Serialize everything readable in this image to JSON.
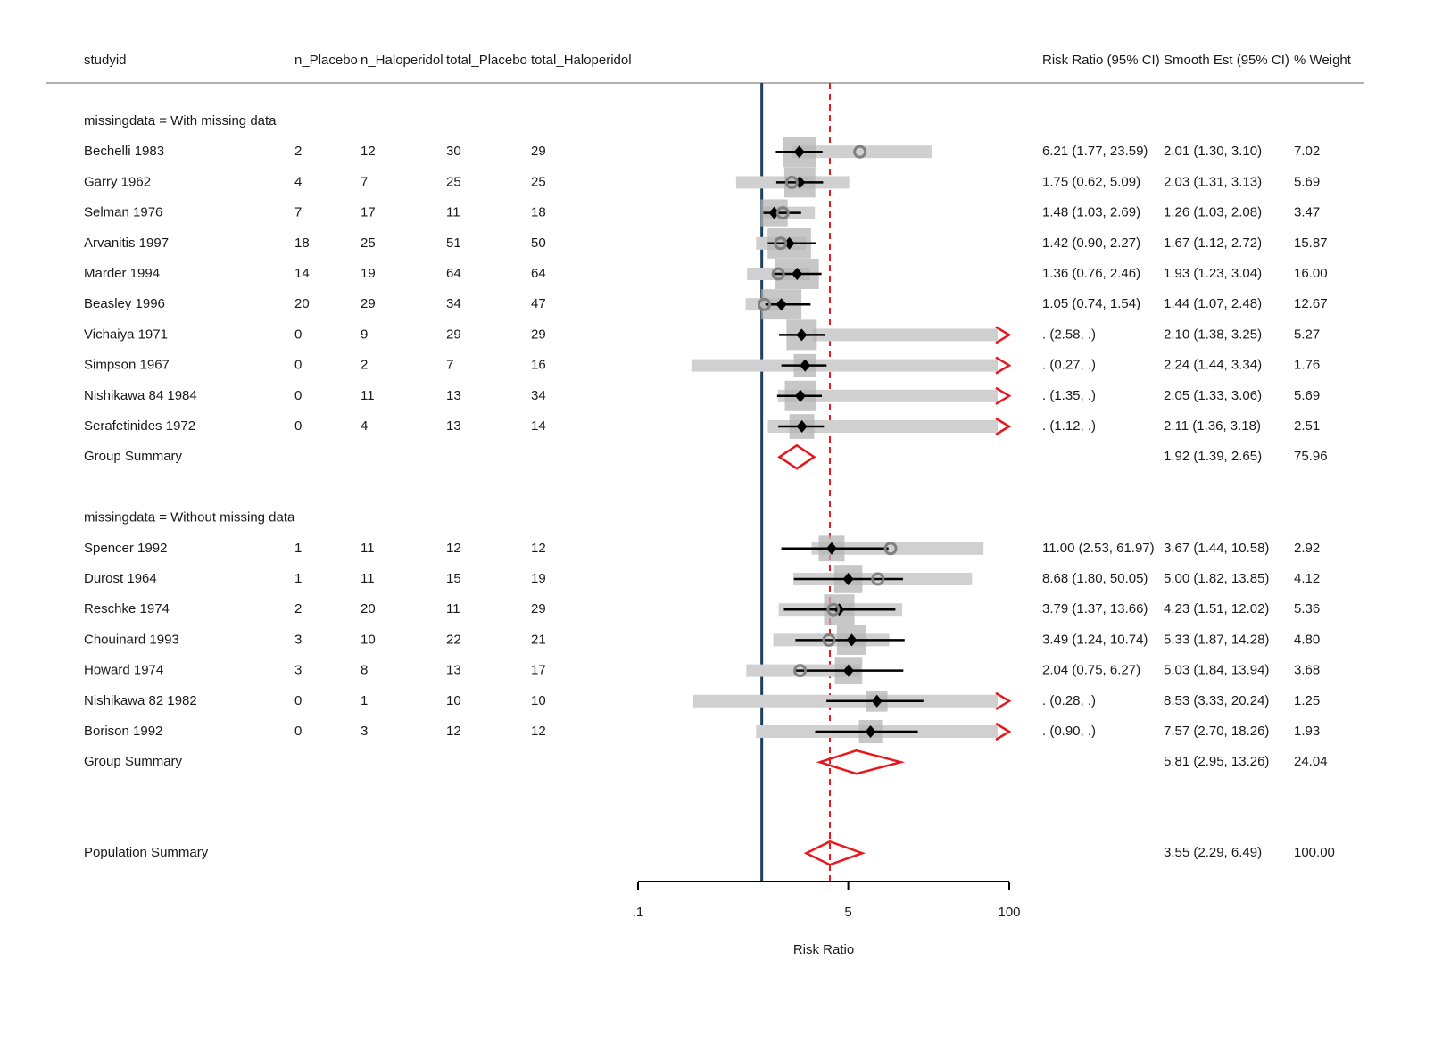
{
  "chart_data": {
    "type": "forest",
    "xlabel": "Risk Ratio",
    "x_scale": "log",
    "xlim": [
      0.1,
      100
    ],
    "x_ticks": [
      {
        "value": 0.1,
        "label": ".1"
      },
      {
        "value": 5,
        "label": "5"
      },
      {
        "value": 100,
        "label": "100"
      }
    ],
    "null_line": 1,
    "summary_line": 3.55,
    "headers": {
      "studyid": "studyid",
      "n_placebo": "n_Placebo",
      "n_haloperidol": "n_Haloperidol",
      "total_placebo": "total_Placebo",
      "total_haloperidol": "total_Haloperidol",
      "rr": "Risk Ratio (95% CI)",
      "smooth": "Smooth Est (95% CI)",
      "weight": "% Weight"
    },
    "groups": [
      {
        "label": "missingdata = With missing data",
        "studies": [
          {
            "studyid": "Bechelli 1983",
            "n_placebo": "2",
            "n_haloperidol": "12",
            "total_placebo": "30",
            "total_haloperidol": "29",
            "rr_text": "6.21 (1.77, 23.59)",
            "smooth_text": "2.01 (1.30, 3.10)",
            "weight_text": "7.02",
            "rr": 6.21,
            "rr_lo": 1.77,
            "rr_hi": 23.59,
            "smooth": 2.01,
            "smooth_lo": 1.3,
            "smooth_hi": 3.1,
            "weight": 7.02
          },
          {
            "studyid": "Garry 1962",
            "n_placebo": "4",
            "n_haloperidol": "7",
            "total_placebo": "25",
            "total_haloperidol": "25",
            "rr_text": "1.75 (0.62, 5.09)",
            "smooth_text": "2.03 (1.31, 3.13)",
            "weight_text": "5.69",
            "rr": 1.75,
            "rr_lo": 0.62,
            "rr_hi": 5.09,
            "smooth": 2.03,
            "smooth_lo": 1.31,
            "smooth_hi": 3.13,
            "weight": 5.69
          },
          {
            "studyid": "Selman 1976",
            "n_placebo": "7",
            "n_haloperidol": "17",
            "total_placebo": "11",
            "total_haloperidol": "18",
            "rr_text": "1.48 (1.03, 2.69)",
            "smooth_text": "1.26 (1.03, 2.08)",
            "weight_text": "3.47",
            "rr": 1.48,
            "rr_lo": 1.03,
            "rr_hi": 2.69,
            "smooth": 1.26,
            "smooth_lo": 1.03,
            "smooth_hi": 2.08,
            "weight": 3.47
          },
          {
            "studyid": "Arvanitis 1997",
            "n_placebo": "18",
            "n_haloperidol": "25",
            "total_placebo": "51",
            "total_haloperidol": "50",
            "rr_text": "1.42 (0.90, 2.27)",
            "smooth_text": "1.67 (1.12, 2.72)",
            "weight_text": "15.87",
            "rr": 1.42,
            "rr_lo": 0.9,
            "rr_hi": 2.27,
            "smooth": 1.67,
            "smooth_lo": 1.12,
            "smooth_hi": 2.72,
            "weight": 15.87
          },
          {
            "studyid": "Marder 1994",
            "n_placebo": "14",
            "n_haloperidol": "19",
            "total_placebo": "64",
            "total_haloperidol": "64",
            "rr_text": "1.36 (0.76, 2.46)",
            "smooth_text": "1.93 (1.23, 3.04)",
            "weight_text": "16.00",
            "rr": 1.36,
            "rr_lo": 0.76,
            "rr_hi": 2.46,
            "smooth": 1.93,
            "smooth_lo": 1.23,
            "smooth_hi": 3.04,
            "weight": 16.0
          },
          {
            "studyid": "Beasley 1996",
            "n_placebo": "20",
            "n_haloperidol": "29",
            "total_placebo": "34",
            "total_haloperidol": "47",
            "rr_text": "1.05 (0.74, 1.54)",
            "smooth_text": "1.44 (1.07, 2.48)",
            "weight_text": "12.67",
            "rr": 1.05,
            "rr_lo": 0.74,
            "rr_hi": 1.54,
            "smooth": 1.44,
            "smooth_lo": 1.07,
            "smooth_hi": 2.48,
            "weight": 12.67
          },
          {
            "studyid": "Vichaiya 1971",
            "n_placebo": "0",
            "n_haloperidol": "9",
            "total_placebo": "29",
            "total_haloperidol": "29",
            "rr_text": ". (2.58, .)",
            "smooth_text": "2.10 (1.38, 3.25)",
            "weight_text": "5.27",
            "rr": null,
            "rr_lo": 2.58,
            "rr_hi": null,
            "smooth": 2.1,
            "smooth_lo": 1.38,
            "smooth_hi": 3.25,
            "weight": 5.27
          },
          {
            "studyid": "Simpson 1967",
            "n_placebo": "0",
            "n_haloperidol": "2",
            "total_placebo": "7",
            "total_haloperidol": "16",
            "rr_text": ". (0.27, .)",
            "smooth_text": "2.24 (1.44, 3.34)",
            "weight_text": "1.76",
            "rr": null,
            "rr_lo": 0.27,
            "rr_hi": null,
            "smooth": 2.24,
            "smooth_lo": 1.44,
            "smooth_hi": 3.34,
            "weight": 1.76
          },
          {
            "studyid": "Nishikawa 84 1984",
            "n_placebo": "0",
            "n_haloperidol": "11",
            "total_placebo": "13",
            "total_haloperidol": "34",
            "rr_text": ". (1.35, .)",
            "smooth_text": "2.05 (1.33, 3.06)",
            "weight_text": "5.69",
            "rr": null,
            "rr_lo": 1.35,
            "rr_hi": null,
            "smooth": 2.05,
            "smooth_lo": 1.33,
            "smooth_hi": 3.06,
            "weight": 5.69
          },
          {
            "studyid": "Serafetinides 1972",
            "n_placebo": "0",
            "n_haloperidol": "4",
            "total_placebo": "13",
            "total_haloperidol": "14",
            "rr_text": ". (1.12, .)",
            "smooth_text": "2.11 (1.36, 3.18)",
            "weight_text": "2.51",
            "rr": null,
            "rr_lo": 1.12,
            "rr_hi": null,
            "smooth": 2.11,
            "smooth_lo": 1.36,
            "smooth_hi": 3.18,
            "weight": 2.51
          }
        ],
        "summary": {
          "label": "Group Summary",
          "smooth_text": "1.92 (1.39, 2.65)",
          "weight_text": "75.96",
          "est": 1.92,
          "lo": 1.39,
          "hi": 2.65
        }
      },
      {
        "label": "missingdata = Without missing data",
        "studies": [
          {
            "studyid": "Spencer 1992",
            "n_placebo": "1",
            "n_haloperidol": "11",
            "total_placebo": "12",
            "total_haloperidol": "12",
            "rr_text": "11.00 (2.53, 61.97)",
            "smooth_text": "3.67 (1.44, 10.58)",
            "weight_text": "2.92",
            "rr": 11.0,
            "rr_lo": 2.53,
            "rr_hi": 61.97,
            "smooth": 3.67,
            "smooth_lo": 1.44,
            "smooth_hi": 10.58,
            "weight": 2.92
          },
          {
            "studyid": "Durost 1964",
            "n_placebo": "1",
            "n_haloperidol": "11",
            "total_placebo": "15",
            "total_haloperidol": "19",
            "rr_text": "8.68 (1.80, 50.05)",
            "smooth_text": "5.00 (1.82, 13.85)",
            "weight_text": "4.12",
            "rr": 8.68,
            "rr_lo": 1.8,
            "rr_hi": 50.05,
            "smooth": 5.0,
            "smooth_lo": 1.82,
            "smooth_hi": 13.85,
            "weight": 4.12
          },
          {
            "studyid": "Reschke 1974",
            "n_placebo": "2",
            "n_haloperidol": "20",
            "total_placebo": "11",
            "total_haloperidol": "29",
            "rr_text": "3.79 (1.37, 13.66)",
            "smooth_text": "4.23 (1.51, 12.02)",
            "weight_text": "5.36",
            "rr": 3.79,
            "rr_lo": 1.37,
            "rr_hi": 13.66,
            "smooth": 4.23,
            "smooth_lo": 1.51,
            "smooth_hi": 12.02,
            "weight": 5.36
          },
          {
            "studyid": "Chouinard 1993",
            "n_placebo": "3",
            "n_haloperidol": "10",
            "total_placebo": "22",
            "total_haloperidol": "21",
            "rr_text": "3.49 (1.24, 10.74)",
            "smooth_text": "5.33 (1.87, 14.28)",
            "weight_text": "4.80",
            "rr": 3.49,
            "rr_lo": 1.24,
            "rr_hi": 10.74,
            "smooth": 5.33,
            "smooth_lo": 1.87,
            "smooth_hi": 14.28,
            "weight": 4.8
          },
          {
            "studyid": "Howard 1974",
            "n_placebo": "3",
            "n_haloperidol": "8",
            "total_placebo": "13",
            "total_haloperidol": "17",
            "rr_text": "2.04 (0.75, 6.27)",
            "smooth_text": "5.03 (1.84, 13.94)",
            "weight_text": "3.68",
            "rr": 2.04,
            "rr_lo": 0.75,
            "rr_hi": 6.27,
            "smooth": 5.03,
            "smooth_lo": 1.84,
            "smooth_hi": 13.94,
            "weight": 3.68
          },
          {
            "studyid": "Nishikawa 82 1982",
            "n_placebo": "0",
            "n_haloperidol": "1",
            "total_placebo": "10",
            "total_haloperidol": "10",
            "rr_text": ". (0.28, .)",
            "smooth_text": "8.53 (3.33, 20.24)",
            "weight_text": "1.25",
            "rr": null,
            "rr_lo": 0.28,
            "rr_hi": null,
            "smooth": 8.53,
            "smooth_lo": 3.33,
            "smooth_hi": 20.24,
            "weight": 1.25
          },
          {
            "studyid": "Borison 1992",
            "n_placebo": "0",
            "n_haloperidol": "3",
            "total_placebo": "12",
            "total_haloperidol": "12",
            "rr_text": ". (0.90, .)",
            "smooth_text": "7.57 (2.70, 18.26)",
            "weight_text": "1.93",
            "rr": null,
            "rr_lo": 0.9,
            "rr_hi": null,
            "smooth": 7.57,
            "smooth_lo": 2.7,
            "smooth_hi": 18.26,
            "weight": 1.93
          }
        ],
        "summary": {
          "label": "Group Summary",
          "smooth_text": "5.81 (2.95, 13.26)",
          "weight_text": "24.04",
          "est": 5.81,
          "lo": 2.95,
          "hi": 13.26
        }
      }
    ],
    "overall": {
      "label": "Population Summary",
      "smooth_text": "3.55 (2.29, 6.49)",
      "weight_text": "100.00",
      "est": 3.55,
      "lo": 2.29,
      "hi": 6.49
    },
    "colors": {
      "ci_band": "#d0d0d0",
      "weight_box": "#b4b4b4",
      "smooth_marker": "#000000",
      "rr_marker": "#808080",
      "summary": "#e8171c",
      "null_line": "#1c3f5e",
      "text": "#1a1a1a"
    }
  }
}
